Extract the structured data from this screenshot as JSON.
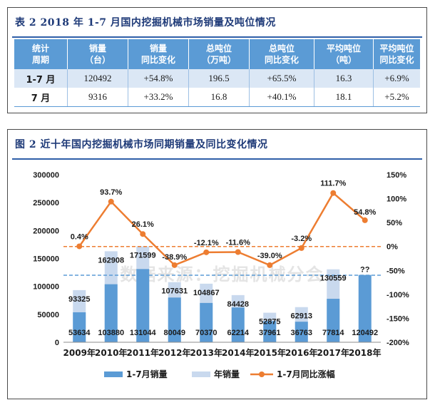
{
  "table": {
    "title": "表 2   2018 年 1-7 月国内挖掘机械市场销量及吨位情况",
    "headers": [
      [
        "统计",
        "周期"
      ],
      [
        "销量",
        "（台）"
      ],
      [
        "销量",
        "同比变化"
      ],
      [
        "总吨位",
        "（万吨）"
      ],
      [
        "总吨位",
        "同比变化"
      ],
      [
        "平均吨位",
        "（吨）"
      ],
      [
        "平均吨位",
        "同比变化"
      ]
    ],
    "rows": [
      [
        "1-7 月",
        "120492",
        "+54.8%",
        "196.5",
        "+65.5%",
        "16.3",
        "+6.9%"
      ],
      [
        "7 月",
        "9316",
        "+33.2%",
        "16.8",
        "+40.1%",
        "18.1",
        "+5.2%"
      ]
    ]
  },
  "chart_title": "图 2   近十年国内挖掘机械市场同期销量及同比变化情况",
  "watermark": "数据来源：挖掘机械分会",
  "chart_data": {
    "type": "bar",
    "categories": [
      "2009年",
      "2010年",
      "2011年",
      "2012年",
      "2013年",
      "2014年",
      "2015年",
      "2016年",
      "2017年",
      "2018年"
    ],
    "series": [
      {
        "name": "1-7月销量",
        "type": "bar",
        "axis": "left",
        "values": [
          53634,
          103880,
          131044,
          80049,
          70370,
          62214,
          37961,
          36763,
          77814,
          120492
        ],
        "labels": [
          "53634",
          "103880",
          "131044",
          "80049",
          "70370",
          "62214",
          "37961",
          "36763",
          "77814",
          "120492"
        ]
      },
      {
        "name": "年销量",
        "type": "bar",
        "axis": "left",
        "values": [
          93325,
          162908,
          171599,
          107631,
          104867,
          84428,
          52875,
          62913,
          130559,
          null
        ],
        "labels": [
          "93325",
          "162908",
          "171599",
          "107631",
          "104867",
          "84428",
          "52875",
          "62913",
          "130559",
          "??"
        ]
      },
      {
        "name": "1-7月同比涨幅",
        "type": "line",
        "axis": "right",
        "values": [
          0.4,
          93.7,
          26.1,
          -38.9,
          -12.1,
          -11.6,
          -39.0,
          -3.2,
          111.7,
          54.8
        ],
        "labels": [
          "0.4%",
          "93.7%",
          "26.1%",
          "-38.9%",
          "-12.1%",
          "-11.6%",
          "-39.0%",
          "-3.2%",
          "111.7%",
          "54.8%"
        ]
      }
    ],
    "ylim_left": [
      0,
      300000
    ],
    "yticks_left": [
      "0",
      "50000",
      "100000",
      "150000",
      "200000",
      "250000",
      "300000"
    ],
    "ylim_right": [
      -200,
      150
    ],
    "yticks_right": [
      "-200%",
      "-150%",
      "-100%",
      "-50%",
      "0%",
      "50%",
      "100%",
      "150%"
    ],
    "reference_lines": [
      {
        "axis": "right",
        "value": 0,
        "color": "#ed7d31"
      },
      {
        "axis": "left",
        "value": 120000,
        "color": "#5b9bd5"
      }
    ],
    "legend_position": "bottom",
    "grid": false
  },
  "colors": {
    "bar_partial": "#5b9bd5",
    "bar_total": "#c9d9ee",
    "line": "#ed7d31",
    "header": "#5b9bd5",
    "title": "#1e3a78"
  }
}
